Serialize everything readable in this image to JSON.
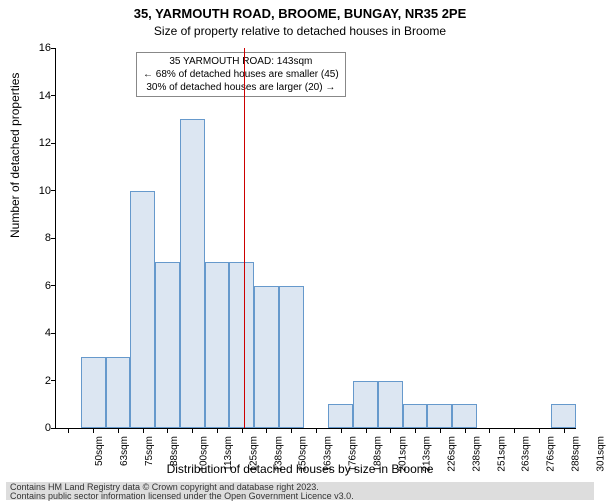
{
  "title": "35, YARMOUTH ROAD, BROOME, BUNGAY, NR35 2PE",
  "subtitle": "Size of property relative to detached houses in Broome",
  "ylabel": "Number of detached properties",
  "xlabel": "Distribution of detached houses by size in Broome",
  "footer_line1": "Contains HM Land Registry data © Crown copyright and database right 2023.",
  "footer_line2": "Contains public sector information licensed under the Open Government Licence v3.0.",
  "chart": {
    "type": "histogram",
    "ylim": [
      0,
      16
    ],
    "ytick_step": 2,
    "bar_fill": "#dce6f2",
    "bar_border": "#6699cc",
    "ref_line_color": "#cc0000",
    "ref_value": 143,
    "xticks": [
      "50sqm",
      "63sqm",
      "75sqm",
      "88sqm",
      "100sqm",
      "113sqm",
      "125sqm",
      "138sqm",
      "150sqm",
      "163sqm",
      "176sqm",
      "188sqm",
      "201sqm",
      "213sqm",
      "226sqm",
      "238sqm",
      "251sqm",
      "263sqm",
      "276sqm",
      "288sqm",
      "301sqm"
    ],
    "values": [
      0,
      3,
      3,
      10,
      7,
      13,
      7,
      7,
      6,
      6,
      0,
      1,
      2,
      2,
      1,
      1,
      1,
      0,
      0,
      0,
      1
    ]
  },
  "annotation": {
    "line1": "35 YARMOUTH ROAD: 143sqm",
    "line2": "← 68% of detached houses are smaller (45)",
    "line3": "30% of detached houses are larger (20) →"
  }
}
